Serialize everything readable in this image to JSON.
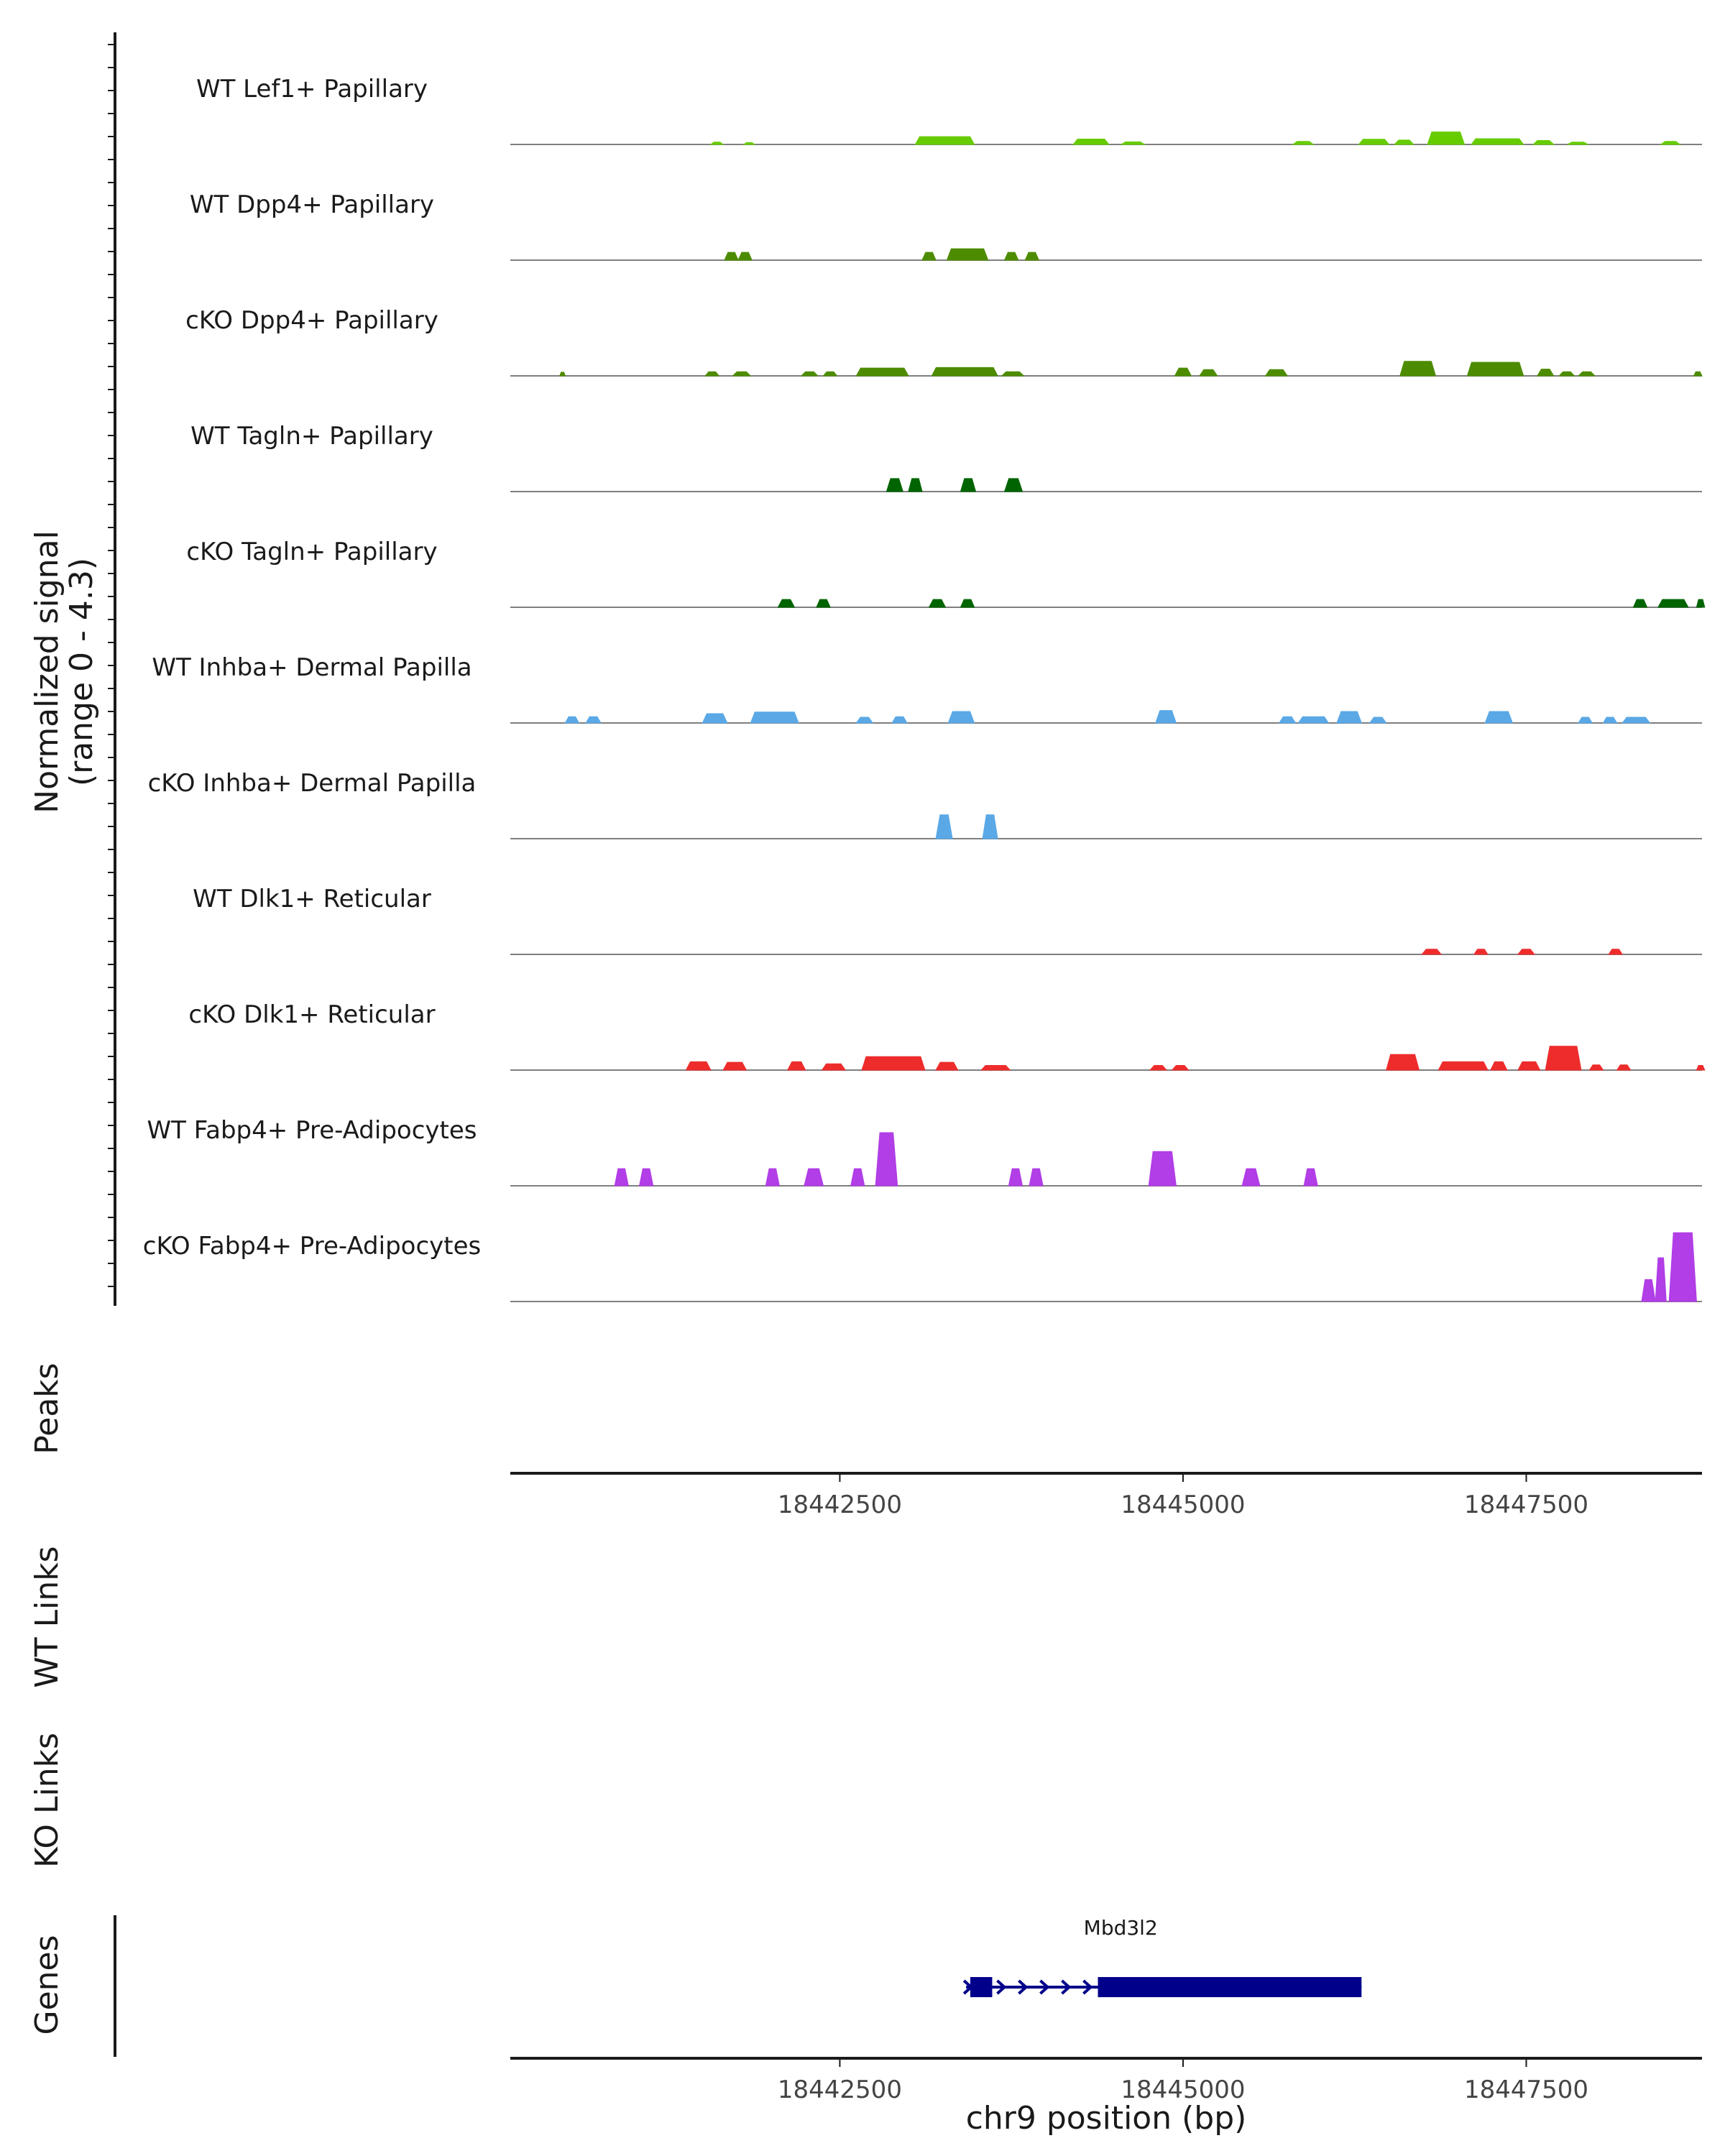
{
  "chart_data": {
    "type": "area",
    "title": "",
    "region": "chr9",
    "xlabel": "chr9 position (bp)",
    "xlim": [
      18440100,
      18448780
    ],
    "x_ticks": [
      {
        "value": 18442500,
        "label": "18442500"
      },
      {
        "value": 18445000,
        "label": "18445000"
      },
      {
        "value": 18447500,
        "label": "18447500"
      }
    ],
    "coverage": {
      "ylabel_line1": "Normalized signal",
      "ylabel_line2": "(range 0 - 4.3)",
      "ylim": [
        0,
        4.3
      ],
      "series": [
        {
          "name": "WT Lef1+ Papillary",
          "color": "#66cc00",
          "peaks": [
            [
              18441560,
              18441650,
              0.22
            ],
            [
              18441800,
              18441880,
              0.18
            ],
            [
              18443050,
              18443480,
              0.75
            ],
            [
              18444200,
              18444460,
              0.52
            ],
            [
              18444550,
              18444720,
              0.25
            ],
            [
              18445800,
              18445950,
              0.3
            ],
            [
              18446280,
              18446500,
              0.5
            ],
            [
              18446540,
              18446680,
              0.42
            ],
            [
              18446780,
              18447050,
              1.2
            ],
            [
              18447100,
              18447480,
              0.55
            ],
            [
              18447550,
              18447700,
              0.38
            ],
            [
              18447800,
              18447950,
              0.22
            ],
            [
              18448480,
              18448620,
              0.3
            ]
          ]
        },
        {
          "name": "WT Dpp4+ Papillary",
          "color": "#4d8c00",
          "peaks": [
            [
              18441660,
              18441760,
              0.75
            ],
            [
              18441760,
              18441860,
              0.75
            ],
            [
              18443100,
              18443200,
              0.75
            ],
            [
              18443280,
              18443580,
              1.1
            ],
            [
              18443700,
              18443800,
              0.75
            ],
            [
              18443850,
              18443950,
              0.75
            ]
          ]
        },
        {
          "name": "cKO Dpp4+ Papillary",
          "color": "#4d8c00",
          "peaks": [
            [
              18440460,
              18440500,
              0.35
            ],
            [
              18441520,
              18441620,
              0.4
            ],
            [
              18441720,
              18441850,
              0.4
            ],
            [
              18442220,
              18442340,
              0.4
            ],
            [
              18442380,
              18442480,
              0.4
            ],
            [
              18442620,
              18443000,
              0.75
            ],
            [
              18443170,
              18443650,
              0.8
            ],
            [
              18443680,
              18443840,
              0.4
            ],
            [
              18444940,
              18445060,
              0.75
            ],
            [
              18445120,
              18445250,
              0.6
            ],
            [
              18445600,
              18445760,
              0.6
            ],
            [
              18446580,
              18446840,
              1.4
            ],
            [
              18447070,
              18447480,
              1.3
            ],
            [
              18447580,
              18447700,
              0.65
            ],
            [
              18447740,
              18447850,
              0.4
            ],
            [
              18447880,
              18448000,
              0.4
            ],
            [
              18448720,
              18448780,
              0.4
            ]
          ]
        },
        {
          "name": "WT Tagln+ Papillary",
          "color": "#006400",
          "peaks": [
            [
              18442840,
              18442960,
              1.25
            ],
            [
              18443000,
              18443100,
              1.25
            ],
            [
              18443380,
              18443490,
              1.25
            ],
            [
              18443700,
              18443830,
              1.25
            ]
          ]
        },
        {
          "name": "cKO Tagln+ Papillary",
          "color": "#006400",
          "peaks": [
            [
              18442050,
              18442170,
              0.75
            ],
            [
              18442330,
              18442430,
              0.75
            ],
            [
              18443150,
              18443270,
              0.75
            ],
            [
              18443380,
              18443480,
              0.75
            ],
            [
              18448280,
              18448380,
              0.75
            ],
            [
              18448460,
              18448680,
              0.75
            ],
            [
              18448740,
              18448800,
              0.75
            ]
          ]
        },
        {
          "name": "WT Inhba+ Dermal Papilla",
          "color": "#5aa8e6",
          "peaks": [
            [
              18440500,
              18440600,
              0.6
            ],
            [
              18440650,
              18440760,
              0.6
            ],
            [
              18441500,
              18441680,
              0.9
            ],
            [
              18441850,
              18442200,
              1.05
            ],
            [
              18442620,
              18442740,
              0.55
            ],
            [
              18442880,
              18442990,
              0.6
            ],
            [
              18443290,
              18443480,
              1.1
            ],
            [
              18444800,
              18444950,
              1.2
            ],
            [
              18445700,
              18445820,
              0.6
            ],
            [
              18445840,
              18446060,
              0.6
            ],
            [
              18446120,
              18446300,
              1.1
            ],
            [
              18446360,
              18446480,
              0.55
            ],
            [
              18447200,
              18447400,
              1.1
            ],
            [
              18447880,
              18447980,
              0.55
            ],
            [
              18448060,
              18448160,
              0.55
            ],
            [
              18448200,
              18448400,
              0.55
            ]
          ]
        },
        {
          "name": "cKO Inhba+ Dermal Papilla",
          "color": "#5aa8e6",
          "peaks": [
            [
              18443200,
              18443320,
              2.3
            ],
            [
              18443540,
              18443650,
              2.3
            ]
          ]
        },
        {
          "name": "WT Dlk1+ Reticular",
          "color": "#ee2c2c",
          "peaks": [
            [
              18446740,
              18446880,
              0.5
            ],
            [
              18447120,
              18447220,
              0.5
            ],
            [
              18447440,
              18447560,
              0.5
            ],
            [
              18448100,
              18448200,
              0.5
            ]
          ]
        },
        {
          "name": "cKO Dlk1+ Reticular",
          "color": "#ee2c2c",
          "peaks": [
            [
              18441380,
              18441560,
              0.8
            ],
            [
              18441650,
              18441820,
              0.75
            ],
            [
              18442120,
              18442250,
              0.8
            ],
            [
              18442370,
              18442540,
              0.6
            ],
            [
              18442660,
              18443120,
              1.3
            ],
            [
              18443200,
              18443360,
              0.75
            ],
            [
              18443530,
              18443740,
              0.45
            ],
            [
              18444760,
              18444880,
              0.45
            ],
            [
              18444920,
              18445040,
              0.45
            ],
            [
              18446480,
              18446720,
              1.5
            ],
            [
              18446860,
              18447220,
              0.8
            ],
            [
              18447240,
              18447360,
              0.8
            ],
            [
              18447440,
              18447600,
              0.8
            ],
            [
              18447640,
              18447900,
              2.3
            ],
            [
              18447960,
              18448060,
              0.5
            ],
            [
              18448160,
              18448260,
              0.5
            ],
            [
              18448740,
              18448800,
              0.45
            ]
          ]
        },
        {
          "name": "WT Fabp4+ Pre-Adipocytes",
          "color": "#b13ee6",
          "peaks": [
            [
              18440860,
              18440960,
              1.65
            ],
            [
              18441040,
              18441140,
              1.65
            ],
            [
              18441960,
              18442060,
              1.65
            ],
            [
              18442240,
              18442380,
              1.65
            ],
            [
              18442580,
              18442680,
              1.65
            ],
            [
              18442760,
              18442920,
              5.1
            ],
            [
              18443730,
              18443830,
              1.65
            ],
            [
              18443880,
              18443980,
              1.65
            ],
            [
              18444750,
              18444950,
              3.3
            ],
            [
              18445430,
              18445560,
              1.65
            ],
            [
              18445880,
              18445980,
              1.65
            ]
          ]
        },
        {
          "name": "cKO Fabp4+ Pre-Adipocytes",
          "color": "#b13ee6",
          "peaks": [
            [
              18448340,
              18448440,
              2.1
            ],
            [
              18448440,
              18448520,
              4.2
            ],
            [
              18448540,
              18448740,
              6.6
            ]
          ]
        }
      ]
    },
    "empty_tracks": [
      {
        "name": "Peaks",
        "label": "Peaks"
      },
      {
        "name": "WT Links",
        "label": "WT Links"
      },
      {
        "name": "KO Links",
        "label": "KO Links"
      }
    ],
    "genes": {
      "label": "Genes",
      "items": [
        {
          "name": "Mbd3l2",
          "start": 18443420,
          "end": 18446300,
          "strand": "+",
          "exons": [
            [
              18443450,
              18443610
            ],
            [
              18444380,
              18446300
            ]
          ]
        }
      ]
    }
  }
}
